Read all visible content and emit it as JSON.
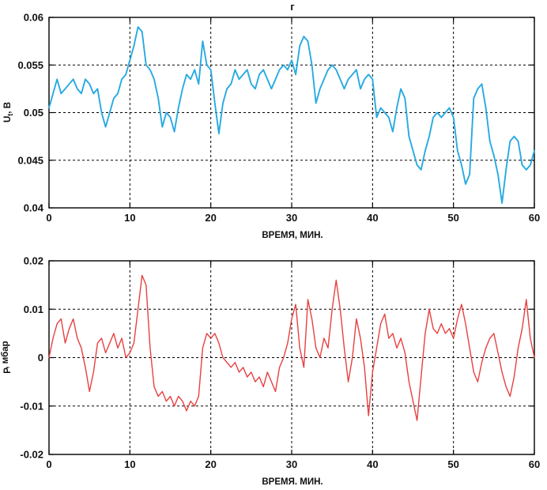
{
  "page": {
    "background": "#ffffff"
  },
  "chart_data": [
    {
      "type": "line",
      "title": "г",
      "xlabel": "ВРЕМЯ, МИН.",
      "ylabel": {
        "main": "U",
        "sub": "t",
        "rest": ", В"
      },
      "xlim": [
        0,
        60
      ],
      "ylim": [
        0.04,
        0.06
      ],
      "xticks": [
        0,
        10,
        20,
        30,
        40,
        50,
        60
      ],
      "yticks": [
        0.04,
        0.045,
        0.05,
        0.055,
        0.06
      ],
      "ytick_labels": [
        "0.04",
        "0.045",
        "0.05",
        "0.055",
        "0.06"
      ],
      "grid": "dashed",
      "legend": "none",
      "line_color": "#27aae1",
      "line_width": 1.9,
      "x": [
        0,
        0.5,
        1,
        1.5,
        2,
        2.5,
        3,
        3.5,
        4,
        4.5,
        5,
        5.5,
        6,
        6.5,
        7,
        7.5,
        8,
        8.5,
        9,
        9.5,
        10,
        10.5,
        11,
        11.5,
        12,
        12.5,
        13,
        13.5,
        14,
        14.5,
        15,
        15.5,
        16,
        16.5,
        17,
        17.5,
        18,
        18.5,
        19,
        19.5,
        20,
        20.5,
        21,
        21.5,
        22,
        22.5,
        23,
        23.5,
        24,
        24.5,
        25,
        25.5,
        26,
        26.5,
        27,
        27.5,
        28,
        28.5,
        29,
        29.5,
        30,
        30.5,
        31,
        31.5,
        32,
        32.5,
        33,
        33.5,
        34,
        34.5,
        35,
        35.5,
        36,
        36.5,
        37,
        37.5,
        38,
        38.5,
        39,
        39.5,
        40,
        40.5,
        41,
        41.5,
        42,
        42.5,
        43,
        43.5,
        44,
        44.5,
        45,
        45.5,
        46,
        46.5,
        47,
        47.5,
        48,
        48.5,
        49,
        49.5,
        50,
        50.5,
        51,
        51.5,
        52,
        52.5,
        53,
        53.5,
        54,
        54.5,
        55,
        55.5,
        56,
        56.5,
        57,
        57.5,
        58,
        58.5,
        59,
        59.5,
        60
      ],
      "y": [
        0.0505,
        0.052,
        0.0535,
        0.052,
        0.0525,
        0.053,
        0.0535,
        0.0525,
        0.052,
        0.0535,
        0.053,
        0.052,
        0.0525,
        0.05,
        0.0485,
        0.05,
        0.0515,
        0.052,
        0.0535,
        0.054,
        0.0555,
        0.057,
        0.059,
        0.0585,
        0.055,
        0.0545,
        0.0535,
        0.0515,
        0.0485,
        0.05,
        0.0495,
        0.048,
        0.0505,
        0.0525,
        0.054,
        0.0535,
        0.0545,
        0.053,
        0.0575,
        0.055,
        0.0545,
        0.051,
        0.0478,
        0.051,
        0.0525,
        0.053,
        0.0545,
        0.0535,
        0.054,
        0.0545,
        0.053,
        0.0525,
        0.054,
        0.0545,
        0.0535,
        0.0525,
        0.0535,
        0.0545,
        0.055,
        0.0545,
        0.0555,
        0.054,
        0.057,
        0.058,
        0.0575,
        0.055,
        0.051,
        0.0525,
        0.0535,
        0.0545,
        0.055,
        0.0545,
        0.0535,
        0.0525,
        0.0535,
        0.054,
        0.0545,
        0.0525,
        0.0535,
        0.054,
        0.0535,
        0.0495,
        0.0505,
        0.05,
        0.0495,
        0.048,
        0.0505,
        0.0525,
        0.0515,
        0.0475,
        0.046,
        0.0445,
        0.044,
        0.046,
        0.0475,
        0.0495,
        0.05,
        0.0495,
        0.05,
        0.0505,
        0.0495,
        0.046,
        0.0445,
        0.0425,
        0.0435,
        0.0515,
        0.0525,
        0.053,
        0.0505,
        0.047,
        0.0455,
        0.0435,
        0.0405,
        0.044,
        0.047,
        0.0475,
        0.047,
        0.0445,
        0.044,
        0.0445,
        0.046
      ]
    },
    {
      "type": "line",
      "title": "",
      "xlabel": "ВРЕМЯ. МИН.",
      "ylabel": {
        "main": "Р",
        "sub": "",
        "rest": ", мбар"
      },
      "xlim": [
        0,
        60
      ],
      "ylim": [
        -0.02,
        0.02
      ],
      "xticks": [
        0,
        10,
        20,
        30,
        40,
        50,
        60
      ],
      "yticks": [
        -0.02,
        -0.01,
        0,
        0.01,
        0.02
      ],
      "ytick_labels": [
        "-0.02",
        "-0.01",
        "0",
        "0.01",
        "0.02"
      ],
      "grid": "dashed",
      "legend": "none",
      "line_color": "#e84040",
      "line_width": 1.4,
      "x": [
        0,
        0.5,
        1,
        1.5,
        2,
        2.5,
        3,
        3.5,
        4,
        4.5,
        5,
        5.5,
        6,
        6.5,
        7,
        7.5,
        8,
        8.5,
        9,
        9.5,
        10,
        10.5,
        11,
        11.5,
        12,
        12.5,
        13,
        13.5,
        14,
        14.5,
        15,
        15.5,
        16,
        16.5,
        17,
        17.5,
        18,
        18.5,
        19,
        19.5,
        20,
        20.5,
        21,
        21.5,
        22,
        22.5,
        23,
        23.5,
        24,
        24.5,
        25,
        25.5,
        26,
        26.5,
        27,
        27.5,
        28,
        28.5,
        29,
        29.5,
        30,
        30.5,
        31,
        31.5,
        32,
        32.5,
        33,
        33.5,
        34,
        34.5,
        35,
        35.5,
        36,
        36.5,
        37,
        37.5,
        38,
        38.5,
        39,
        39.5,
        40,
        40.5,
        41,
        41.5,
        42,
        42.5,
        43,
        43.5,
        44,
        44.5,
        45,
        45.5,
        46,
        46.5,
        47,
        47.5,
        48,
        48.5,
        49,
        49.5,
        50,
        50.5,
        51,
        51.5,
        52,
        52.5,
        53,
        53.5,
        54,
        54.5,
        55,
        55.5,
        56,
        56.5,
        57,
        57.5,
        58,
        58.5,
        59,
        59.5,
        60
      ],
      "y": [
        0.0,
        0.004,
        0.007,
        0.008,
        0.003,
        0.006,
        0.008,
        0.004,
        0.002,
        -0.002,
        -0.007,
        -0.003,
        0.003,
        0.004,
        0.001,
        0.003,
        0.005,
        0.002,
        0.004,
        0.0,
        0.001,
        0.003,
        0.01,
        0.017,
        0.015,
        0.002,
        -0.006,
        -0.008,
        -0.007,
        -0.009,
        -0.008,
        -0.01,
        -0.008,
        -0.009,
        -0.011,
        -0.009,
        -0.01,
        -0.008,
        0.002,
        0.005,
        0.004,
        0.005,
        0.003,
        0.0,
        -0.001,
        -0.002,
        -0.001,
        -0.003,
        -0.002,
        -0.004,
        -0.003,
        -0.005,
        -0.004,
        -0.006,
        -0.003,
        -0.005,
        -0.007,
        -0.002,
        0.0,
        0.003,
        0.008,
        0.011,
        0.002,
        -0.002,
        0.012,
        0.008,
        0.002,
        0.0,
        0.004,
        0.002,
        0.01,
        0.016,
        0.01,
        0.002,
        -0.005,
        0.0,
        0.008,
        0.004,
        -0.002,
        -0.012,
        -0.003,
        0.002,
        0.007,
        0.009,
        0.004,
        0.005,
        0.002,
        0.004,
        0.001,
        -0.005,
        -0.009,
        -0.013,
        -0.004,
        0.005,
        0.01,
        0.006,
        0.005,
        0.007,
        0.005,
        0.006,
        0.004,
        0.008,
        0.011,
        0.007,
        0.002,
        -0.003,
        -0.005,
        -0.001,
        0.002,
        0.004,
        0.005,
        0.001,
        -0.003,
        -0.006,
        -0.008,
        -0.004,
        0.002,
        0.006,
        0.012,
        0.004,
        0.0
      ]
    }
  ]
}
